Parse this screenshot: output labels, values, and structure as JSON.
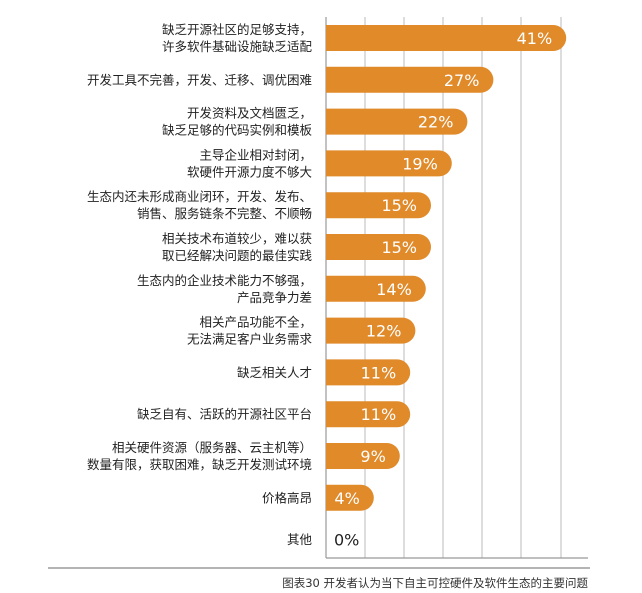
{
  "chart_data": {
    "type": "bar",
    "orientation": "horizontal",
    "categories": [
      [
        "缺乏开源社区的足够支持，",
        "许多软件基础设施缺乏适配"
      ],
      [
        "开发工具不完善，开发、迁移、调优困难"
      ],
      [
        "开发资料及文档匮乏，",
        "缺乏足够的代码实例和模板"
      ],
      [
        "主导企业相对封闭，",
        "软硬件开源力度不够大"
      ],
      [
        "生态内还未形成商业闭环，开发、发布、",
        "销售、服务链条不完整、不顺畅"
      ],
      [
        "相关技术布道较少，难以获",
        "取已经解决问题的最佳实践"
      ],
      [
        "生态内的企业技术能力不够强，",
        "产品竞争力差"
      ],
      [
        "相关产品功能不全，",
        "无法满足客户业务需求"
      ],
      [
        "缺乏相关人才"
      ],
      [
        "缺乏自有、活跃的开源社区平台"
      ],
      [
        "相关硬件资源（服务器、云主机等）",
        "数量有限，获取困难，缺乏开发测试环境"
      ],
      [
        "价格高昂"
      ],
      [
        "其他"
      ]
    ],
    "values": [
      41,
      27,
      22,
      19,
      15,
      15,
      14,
      12,
      11,
      11,
      9,
      4,
      0
    ],
    "value_labels": [
      "41%",
      "27%",
      "22%",
      "19%",
      "15%",
      "15%",
      "14%",
      "12%",
      "11%",
      "11%",
      "9%",
      "4%",
      "0%"
    ],
    "grid": true,
    "bar_color": "#e08a2a",
    "caption": "图表30 开发者认为当下自主可控硬件及软件生态的主要问题"
  }
}
